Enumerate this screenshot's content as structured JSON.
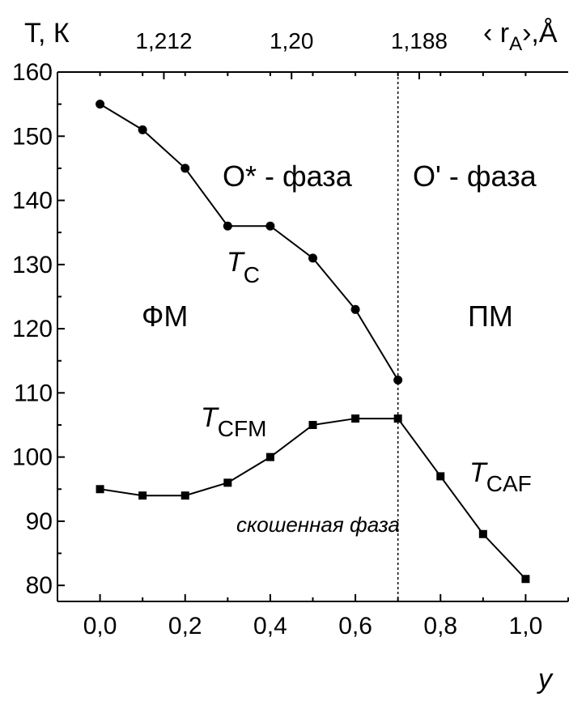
{
  "chart_data": {
    "type": "line",
    "x": [
      0.0,
      0.1,
      0.2,
      0.3,
      0.4,
      0.5,
      0.6,
      0.7,
      0.8,
      0.9,
      1.0
    ],
    "xlim": [
      -0.1,
      1.1
    ],
    "ylim": [
      77.5,
      160
    ],
    "x_ticks": [
      0.0,
      0.2,
      0.4,
      0.6,
      0.8,
      1.0
    ],
    "x_tick_labels": [
      "0,0",
      "0,2",
      "0,4",
      "0,6",
      "0,8",
      "1,0"
    ],
    "y_ticks": [
      80,
      90,
      100,
      110,
      120,
      130,
      140,
      150,
      160
    ],
    "y_tick_labels": [
      "80",
      "90",
      "100",
      "110",
      "120",
      "130",
      "140",
      "150",
      "160"
    ],
    "top_axis": {
      "ticks": [
        0.15,
        0.45,
        0.75
      ],
      "tick_labels": [
        "1,212",
        "1,20",
        "1,188"
      ]
    },
    "xlabel": "y",
    "ylabel": "T, К",
    "top_label": {
      "prefix": "‹ r",
      "sub": "A",
      "suffix": "›,Å"
    },
    "grid": false,
    "boundary_x": 0.7,
    "series": [
      {
        "x": [
          0.0,
          0.1,
          0.2,
          0.3,
          0.4,
          0.5,
          0.6,
          0.7
        ],
        "values": [
          155,
          151,
          145,
          136,
          136,
          131,
          123,
          112
        ],
        "marker": "circle"
      },
      {
        "x": [
          0.0,
          0.1,
          0.2,
          0.3,
          0.4,
          0.5,
          0.6,
          0.7,
          0.8,
          0.9,
          1.0
        ],
        "values": [
          95,
          94,
          94,
          96,
          100,
          105,
          106,
          106,
          97,
          88,
          81
        ],
        "marker": "square"
      }
    ],
    "annotations": {
      "phase_o_star": "О* - фаза",
      "phase_o_prime": "О' - фаза",
      "fm": "ФМ",
      "pm": "ПМ",
      "tc": {
        "main": "T",
        "sub": "C"
      },
      "tcfm": {
        "main": "T",
        "sub": "CFM"
      },
      "tcaf": {
        "main": "T",
        "sub": "CAF"
      },
      "canted": "скошенная фаза"
    },
    "colors": {
      "line": "#000000",
      "background": "#ffffff"
    }
  }
}
